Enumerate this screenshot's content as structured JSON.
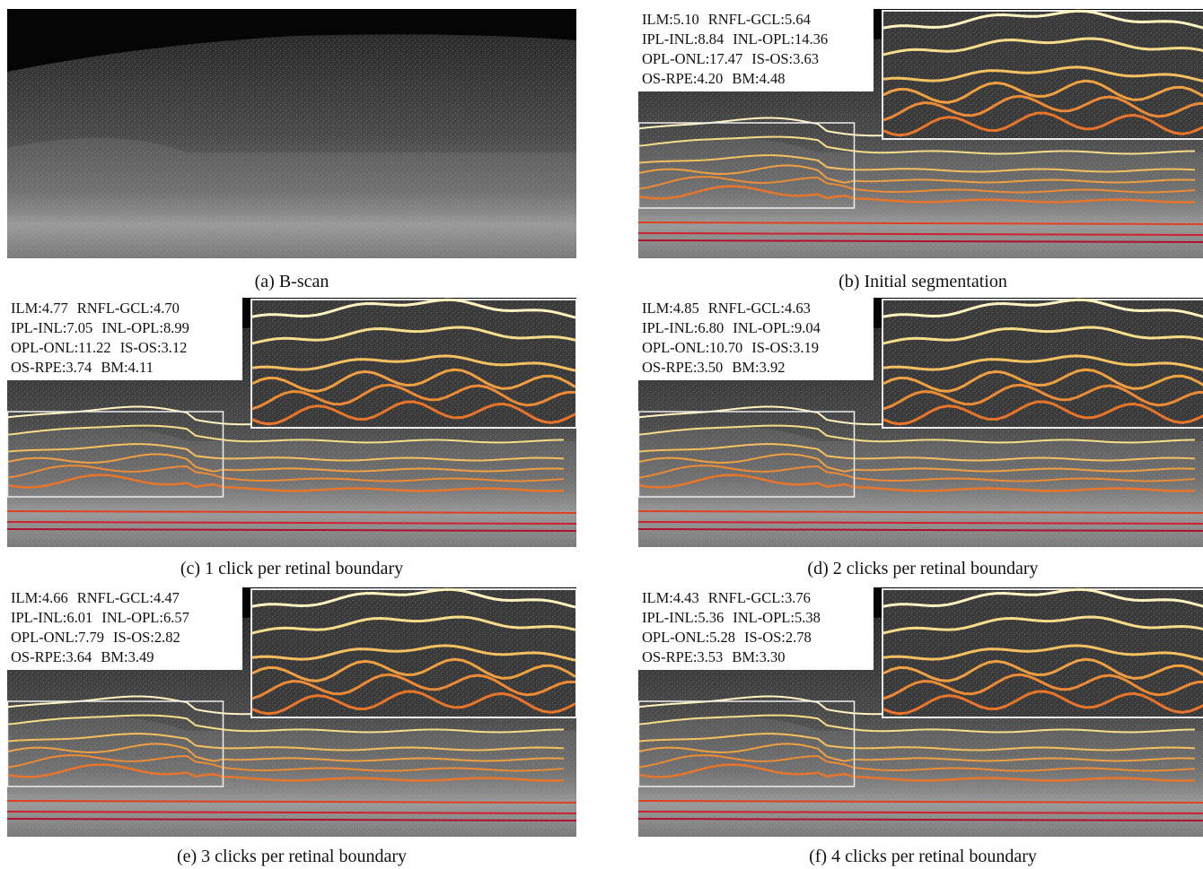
{
  "panels": [
    {
      "caption": "(a) B-scan"
    },
    {
      "caption": "(b) Initial segmentation",
      "metrics": [
        [
          "ILM:5.10",
          "RNFL-GCL:5.64"
        ],
        [
          "IPL-INL:8.84",
          "INL-OPL:14.36"
        ],
        [
          "OPL-ONL:17.47",
          "IS-OS:3.63"
        ],
        [
          "OS-RPE:4.20",
          "BM:4.48"
        ]
      ]
    },
    {
      "caption": "(c) 1 click per retinal boundary",
      "metrics": [
        [
          "ILM:4.77",
          "RNFL-GCL:4.70"
        ],
        [
          "IPL-INL:7.05",
          "INL-OPL:8.99"
        ],
        [
          "OPL-ONL:11.22",
          "IS-OS:3.12"
        ],
        [
          "OS-RPE:3.74",
          "BM:4.11"
        ]
      ]
    },
    {
      "caption": "(d) 2 clicks per retinal boundary",
      "metrics": [
        [
          "ILM:4.85",
          "RNFL-GCL:4.63"
        ],
        [
          "IPL-INL:6.80",
          "INL-OPL:9.04"
        ],
        [
          "OPL-ONL:10.70",
          "IS-OS:3.19"
        ],
        [
          "OS-RPE:3.50",
          "BM:3.92"
        ]
      ]
    },
    {
      "caption": "(e) 3 clicks per retinal boundary",
      "metrics": [
        [
          "ILM:4.66",
          "RNFL-GCL:4.47"
        ],
        [
          "IPL-INL:6.01",
          "INL-OPL:6.57"
        ],
        [
          "OPL-ONL:7.79",
          "IS-OS:2.82"
        ],
        [
          "OS-RPE:3.64",
          "BM:3.49"
        ]
      ]
    },
    {
      "caption": "(f) 4 clicks per retinal boundary",
      "metrics": [
        [
          "ILM:4.43",
          "RNFL-GCL:3.76"
        ],
        [
          "IPL-INL:5.36",
          "INL-OPL:5.38"
        ],
        [
          "OPL-ONL:5.28",
          "IS-OS:2.78"
        ],
        [
          "OS-RPE:3.53",
          "BM:3.30"
        ]
      ]
    }
  ]
}
